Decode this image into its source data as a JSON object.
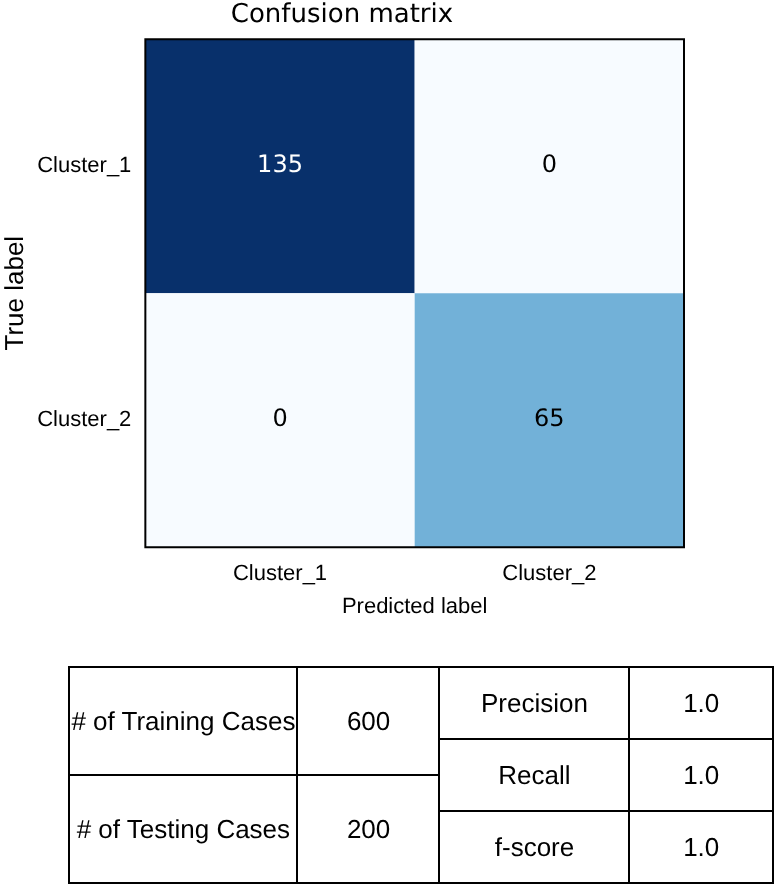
{
  "chart_data": {
    "type": "heatmap",
    "title": "Confusion matrix",
    "xlabel": "Predicted label",
    "ylabel": "True label",
    "categories": [
      "Cluster_1",
      "Cluster_2"
    ],
    "y_categories": [
      "Cluster_1",
      "Cluster_2"
    ],
    "cells": [
      [
        135,
        0
      ],
      [
        0,
        65
      ]
    ],
    "data_labels": true,
    "annotations": [
      "# of Training Cases",
      "600",
      "# of Testing Cases",
      "200",
      "Precision",
      "1.0",
      "Recall",
      "1.0",
      "f-score",
      "1.0"
    ]
  }
}
